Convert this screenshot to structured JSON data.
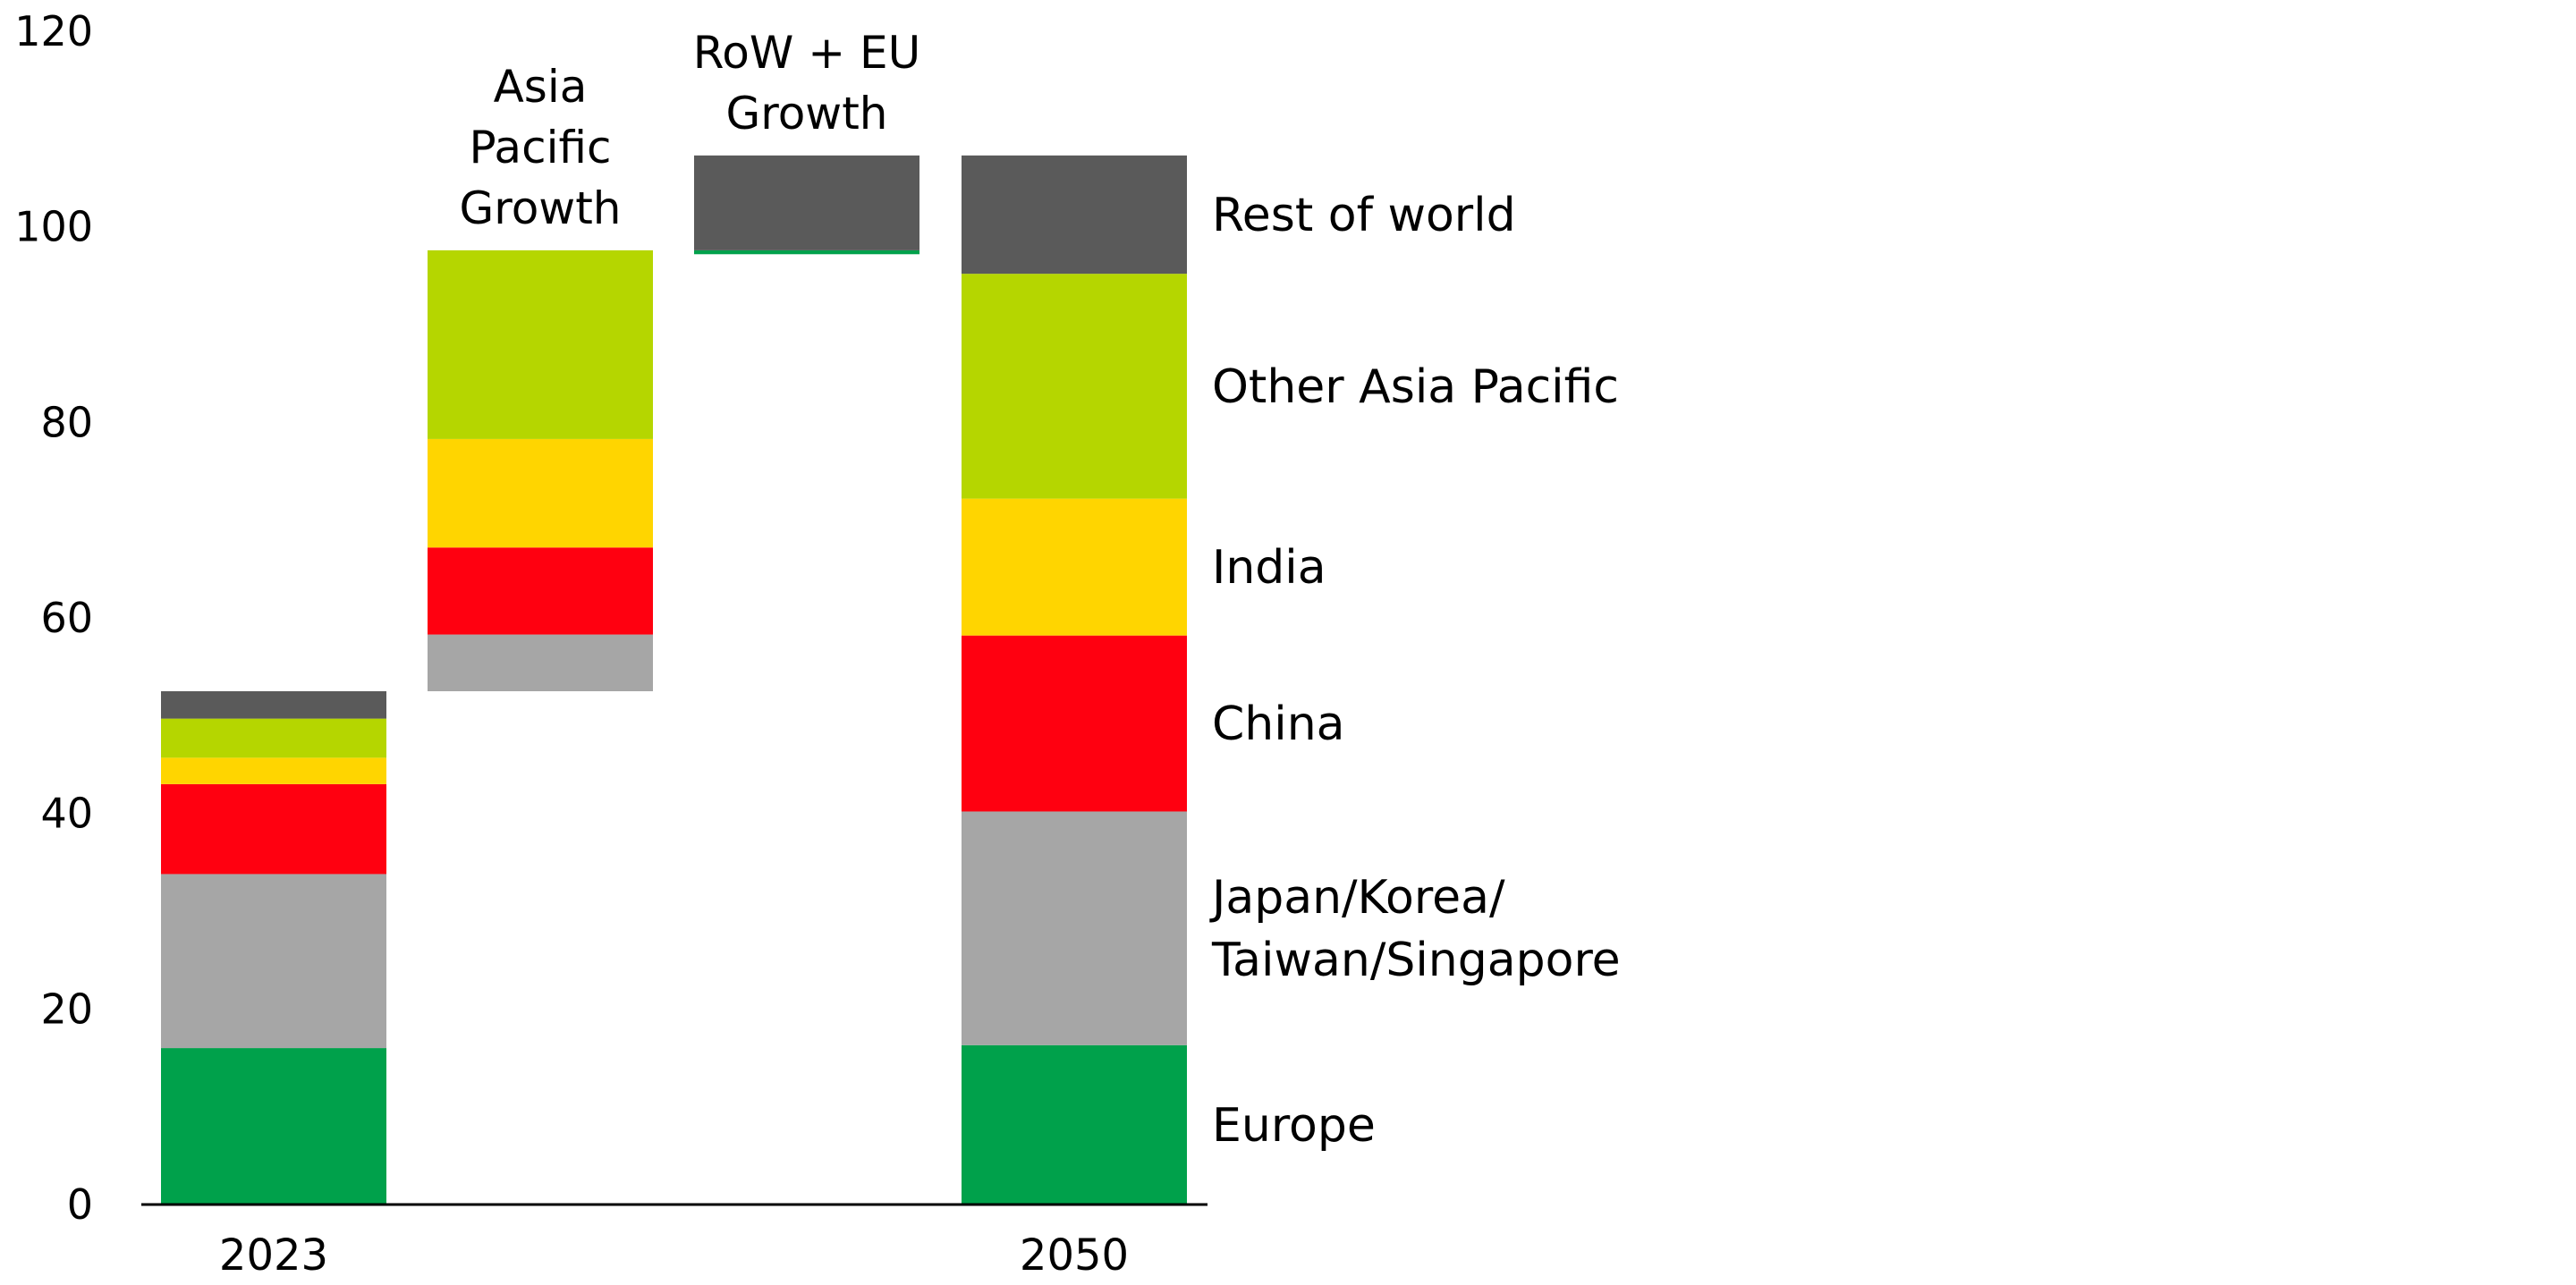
{
  "chart_data": {
    "type": "bar",
    "subtype": "waterfall-stacked",
    "ylim": [
      0,
      120
    ],
    "yticks": [
      "0",
      "20",
      "40",
      "60",
      "80",
      "100",
      "120"
    ],
    "grid": false,
    "categories": [
      "2023",
      "",
      "",
      "2050"
    ],
    "top_labels": [
      "",
      "Asia\nPacific\nGrowth",
      "RoW + EU\nGrowth",
      ""
    ],
    "colors": {
      "Europe": "#00a14b",
      "Japan/Korea/Taiwan/Singapore": "#a6a6a6",
      "China": "#ff0010",
      "India": "#ffd500",
      "Other Asia Pacific": "#b5d600",
      "Rest of world": "#5a5a5a"
    },
    "bars": [
      {
        "segments": [
          {
            "series": "Europe",
            "from": 0,
            "to": 16
          },
          {
            "series": "Japan/Korea/Taiwan/Singapore",
            "from": 16,
            "to": 33.8
          },
          {
            "series": "China",
            "from": 33.8,
            "to": 43
          },
          {
            "series": "India",
            "from": 43,
            "to": 45.7
          },
          {
            "series": "Other Asia Pacific",
            "from": 45.7,
            "to": 49.7
          },
          {
            "series": "Rest of world",
            "from": 49.7,
            "to": 52.5
          }
        ]
      },
      {
        "segments": [
          {
            "series": "Japan/Korea/Taiwan/Singapore",
            "from": 52.5,
            "to": 58.3
          },
          {
            "series": "China",
            "from": 58.3,
            "to": 67.2
          },
          {
            "series": "India",
            "from": 67.2,
            "to": 78.3
          },
          {
            "series": "Other Asia Pacific",
            "from": 78.3,
            "to": 97.6
          }
        ]
      },
      {
        "segments": [
          {
            "series": "Europe",
            "from": 97.2,
            "to": 97.6
          },
          {
            "series": "Rest of world",
            "from": 97.6,
            "to": 107.3
          }
        ]
      },
      {
        "segments": [
          {
            "series": "Europe",
            "from": 0,
            "to": 16.3
          },
          {
            "series": "Japan/Korea/Taiwan/Singapore",
            "from": 16.3,
            "to": 40.2
          },
          {
            "series": "China",
            "from": 40.2,
            "to": 58.2
          },
          {
            "series": "India",
            "from": 58.2,
            "to": 72.2
          },
          {
            "series": "Other Asia Pacific",
            "from": 72.2,
            "to": 95.2
          },
          {
            "series": "Rest of world",
            "from": 95.2,
            "to": 107.3
          }
        ]
      }
    ],
    "series_labels": [
      {
        "name": "Rest of world",
        "text": "Rest of world"
      },
      {
        "name": "Other Asia Pacific",
        "text": "Other Asia Pacific"
      },
      {
        "name": "India",
        "text": "India"
      },
      {
        "name": "China",
        "text": "China"
      },
      {
        "name": "Japan/Korea/Taiwan/Singapore",
        "text": "Japan/Korea/\nTaiwan/Singapore"
      },
      {
        "name": "Europe",
        "text": "Europe"
      }
    ]
  }
}
